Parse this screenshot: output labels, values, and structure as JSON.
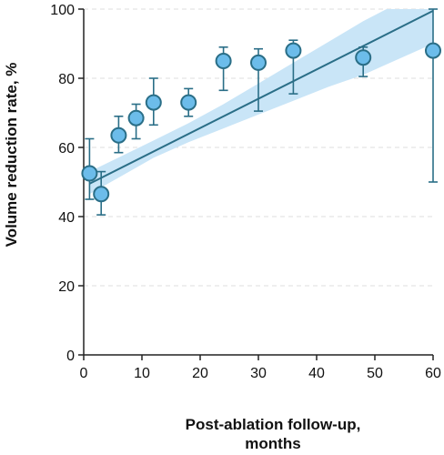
{
  "chart_data": {
    "type": "scatter",
    "xlabel_line1": "Post-ablation follow-up,",
    "xlabel_line2": "months",
    "ylabel": "Volume reduction rate, %",
    "xlim": [
      0,
      60
    ],
    "ylim": [
      0,
      100
    ],
    "x_ticks": [
      0,
      10,
      20,
      30,
      40,
      50,
      60
    ],
    "y_ticks": [
      0,
      20,
      40,
      60,
      80,
      100
    ],
    "y_gridlines": [
      20,
      40,
      60,
      80,
      100
    ],
    "grid": "horizontal dashed",
    "points": [
      {
        "x": 1,
        "y": 52.5,
        "err_low": 45,
        "err_high": 62.5
      },
      {
        "x": 3,
        "y": 46.5,
        "err_low": 40.5,
        "err_high": 53
      },
      {
        "x": 6,
        "y": 63.5,
        "err_low": 58.5,
        "err_high": 69
      },
      {
        "x": 9,
        "y": 68.5,
        "err_low": 62.5,
        "err_high": 72.5
      },
      {
        "x": 12,
        "y": 73,
        "err_low": 66.5,
        "err_high": 80
      },
      {
        "x": 18,
        "y": 73,
        "err_low": 69,
        "err_high": 77
      },
      {
        "x": 24,
        "y": 85,
        "err_low": 76.5,
        "err_high": 89
      },
      {
        "x": 30,
        "y": 84.5,
        "err_low": 70.5,
        "err_high": 88.5
      },
      {
        "x": 36,
        "y": 88,
        "err_low": 75.5,
        "err_high": 91
      },
      {
        "x": 48,
        "y": 86,
        "err_low": 80.5,
        "err_high": 89
      },
      {
        "x": 60,
        "y": 88,
        "err_low": 50,
        "err_high": 100
      }
    ],
    "fit_line": {
      "x": [
        1,
        60
      ],
      "y": [
        49.5,
        99.5
      ]
    },
    "confidence_band": {
      "x": [
        1,
        12,
        18,
        24,
        30,
        36,
        42,
        48,
        52,
        56,
        60
      ],
      "upper": [
        53,
        62,
        67,
        72.5,
        78.5,
        84.5,
        90.5,
        96.5,
        100,
        100,
        100
      ],
      "lower": [
        46.5,
        57,
        61.5,
        65.5,
        69.5,
        73.5,
        77.5,
        81,
        84,
        87,
        90
      ]
    },
    "colors": {
      "marker_fill": "#6cbcea",
      "marker_edge": "#2a6e87",
      "line": "#2a6e87",
      "band": "#c9e5f7",
      "grid": "#dddddd",
      "axis": "#222222"
    }
  }
}
